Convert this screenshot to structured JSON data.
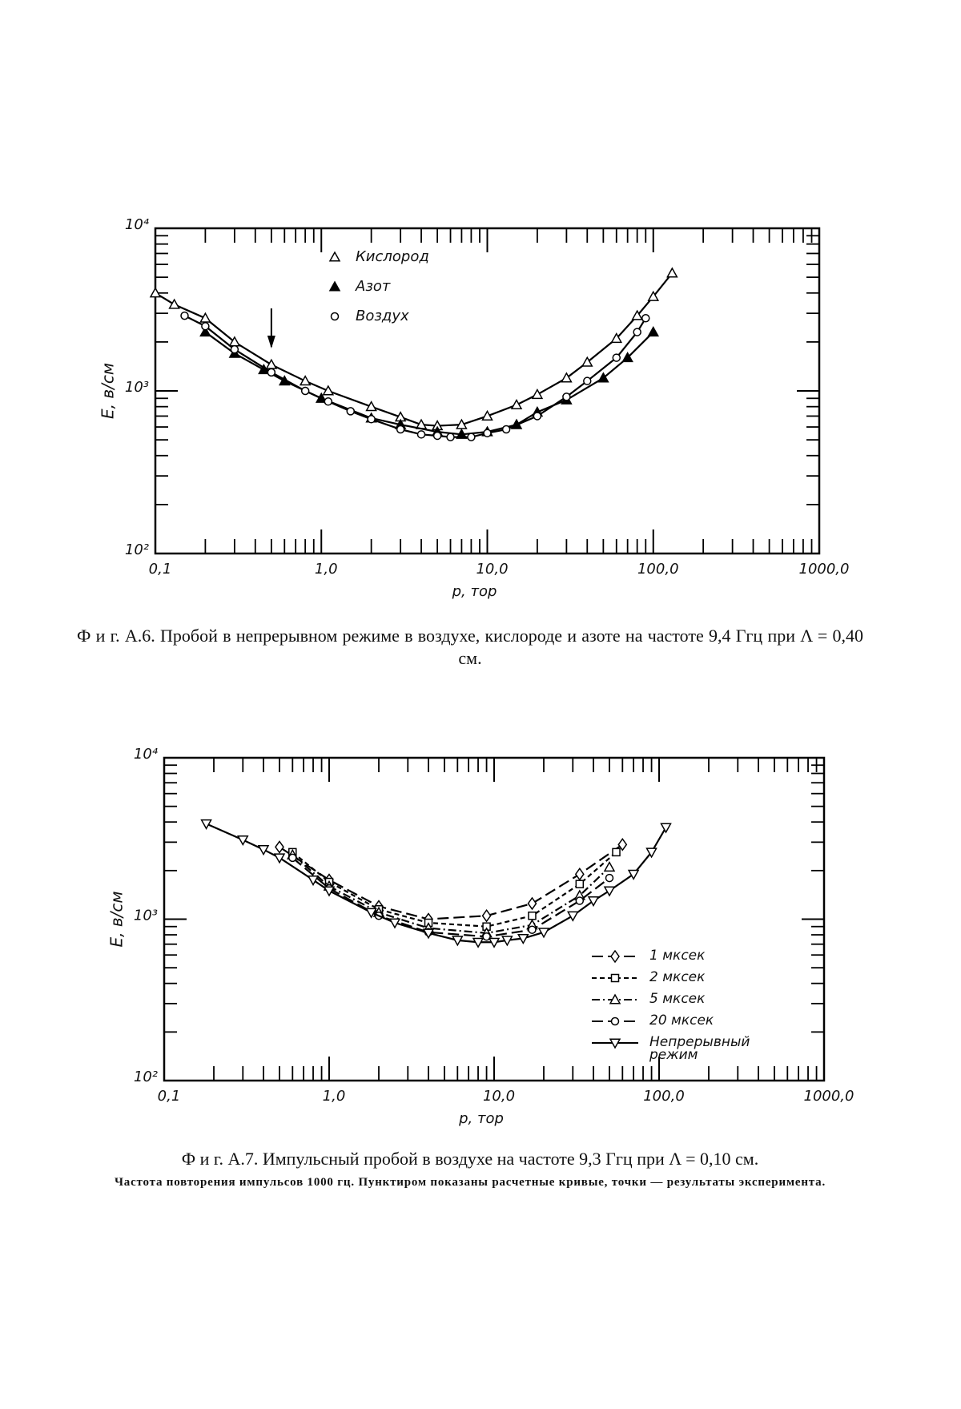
{
  "chart_data": [
    {
      "type": "line",
      "xscale": "log",
      "yscale": "log",
      "xlabel": "p, тор",
      "ylabel": "E, в/см",
      "xlim": [
        0.1,
        1000
      ],
      "ylim": [
        100,
        10000
      ],
      "xticks": [
        {
          "value": 0.1,
          "label": "0,1"
        },
        {
          "value": 1,
          "label": "1,0"
        },
        {
          "value": 10,
          "label": "10,0"
        },
        {
          "value": 100,
          "label": "100,0"
        },
        {
          "value": 1000,
          "label": "1000,0"
        }
      ],
      "yticks": [
        {
          "value": 100,
          "label": "10²"
        },
        {
          "value": 1000,
          "label": "10³"
        },
        {
          "value": 10000,
          "label": "10⁴"
        }
      ],
      "series": [
        {
          "name": "Кислород",
          "color": "#000000",
          "marker": "triangle",
          "filled": false,
          "dash": "solid",
          "x": [
            0.1,
            0.13,
            0.2,
            0.3,
            0.5,
            0.8,
            1.1,
            2,
            3,
            4,
            5,
            7,
            10,
            15,
            20,
            30,
            40,
            60,
            80,
            100,
            130
          ],
          "values": [
            4000,
            3400,
            2800,
            2000,
            1450,
            1150,
            1000,
            800,
            690,
            620,
            610,
            620,
            700,
            820,
            950,
            1200,
            1500,
            2100,
            2900,
            3800,
            5300
          ]
        },
        {
          "name": "Азот",
          "color": "#000000",
          "marker": "triangle",
          "filled": true,
          "dash": "solid",
          "x": [
            0.2,
            0.3,
            0.45,
            0.6,
            1,
            2,
            3,
            5,
            7,
            10,
            15,
            20,
            30,
            50,
            70,
            100
          ],
          "values": [
            2300,
            1700,
            1350,
            1150,
            900,
            680,
            620,
            560,
            540,
            560,
            620,
            740,
            880,
            1200,
            1600,
            2300
          ]
        },
        {
          "name": "Воздух",
          "color": "#000000",
          "marker": "circle",
          "filled": false,
          "dash": "solid",
          "x": [
            0.15,
            0.2,
            0.3,
            0.5,
            0.8,
            1.1,
            1.5,
            2,
            3,
            4,
            5,
            6,
            8,
            10,
            13,
            20,
            30,
            40,
            60,
            80,
            90
          ],
          "values": [
            2900,
            2500,
            1800,
            1300,
            1000,
            860,
            750,
            670,
            580,
            540,
            530,
            520,
            520,
            550,
            580,
            700,
            920,
            1150,
            1600,
            2300,
            2800
          ]
        }
      ],
      "caption": "Ф и г. А.6. Пробой в непрерывном режиме в воздухе, кислороде и азоте на частоте 9,4 Ггц при Λ = 0,40 см."
    },
    {
      "type": "line",
      "xscale": "log",
      "yscale": "log",
      "xlabel": "p, тор",
      "ylabel": "E, в/см",
      "xlim": [
        0.1,
        1000
      ],
      "ylim": [
        100,
        10000
      ],
      "xticks": [
        {
          "value": 0.1,
          "label": "0,1"
        },
        {
          "value": 1,
          "label": "1,0"
        },
        {
          "value": 10,
          "label": "10,0"
        },
        {
          "value": 100,
          "label": "100,0"
        },
        {
          "value": 1000,
          "label": "1000,0"
        }
      ],
      "yticks": [
        {
          "value": 100,
          "label": "10²"
        },
        {
          "value": 1000,
          "label": "10³"
        },
        {
          "value": 10000,
          "label": "10⁴"
        }
      ],
      "series": [
        {
          "name": "1 мксек",
          "color": "#000000",
          "marker": "diamond",
          "filled": false,
          "dash": "long",
          "x": [
            0.5,
            1,
            2,
            4,
            9,
            17,
            33,
            60
          ],
          "values": [
            2800,
            1750,
            1200,
            1000,
            1050,
            1250,
            1900,
            2900
          ]
        },
        {
          "name": "2 мксек",
          "color": "#000000",
          "marker": "square",
          "filled": false,
          "dash": "short",
          "x": [
            0.6,
            1,
            2,
            4,
            9,
            17,
            33,
            55
          ],
          "values": [
            2600,
            1700,
            1150,
            950,
            900,
            1050,
            1650,
            2600
          ]
        },
        {
          "name": "5 мксек",
          "color": "#000000",
          "marker": "triangle",
          "filled": false,
          "dash": "dashdot",
          "x": [
            0.6,
            1,
            2,
            4,
            9,
            17,
            33,
            50
          ],
          "values": [
            2500,
            1600,
            1100,
            880,
            820,
            920,
            1400,
            2100
          ]
        },
        {
          "name": "20 мксек",
          "color": "#000000",
          "marker": "circle",
          "filled": false,
          "dash": "long",
          "x": [
            0.6,
            1,
            2,
            4,
            9,
            17,
            33,
            50
          ],
          "values": [
            2400,
            1550,
            1050,
            830,
            780,
            860,
            1300,
            1800
          ]
        },
        {
          "name": "Непрерывный режим",
          "color": "#000000",
          "marker": "invtriangle",
          "filled": false,
          "dash": "solid",
          "x": [
            0.18,
            0.3,
            0.4,
            0.5,
            0.8,
            1,
            1.8,
            2.5,
            4,
            6,
            8,
            10,
            12,
            15,
            20,
            30,
            40,
            50,
            70,
            90,
            110
          ],
          "values": [
            3900,
            3100,
            2700,
            2400,
            1750,
            1500,
            1100,
            950,
            820,
            740,
            720,
            720,
            740,
            760,
            830,
            1050,
            1300,
            1500,
            1900,
            2600,
            3700
          ]
        }
      ],
      "caption": "Ф и г. А.7. Импульсный пробой в воздухе на частоте 9,3 Ггц при Λ = 0,10 см.",
      "note": "Частота повторения импульсов 1000 гц. Пунктиром показаны расчетные кривые, точки — результаты эксперимента."
    }
  ]
}
